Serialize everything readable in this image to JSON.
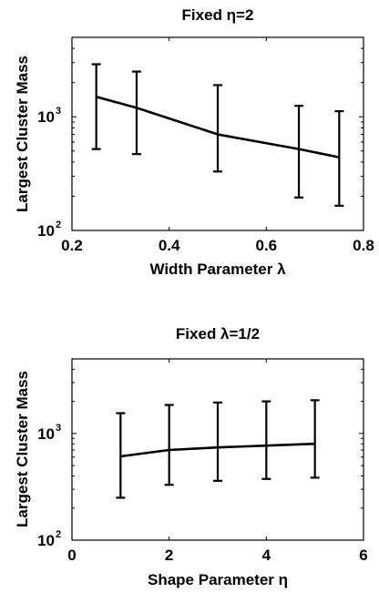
{
  "chart_data": [
    {
      "type": "line",
      "title": "Fixed η=2",
      "xlabel": "Width Parameter λ",
      "ylabel": "Largest Cluster Mass",
      "xlim": [
        0.2,
        0.8
      ],
      "ylim": [
        100,
        5000
      ],
      "yscale": "log",
      "xticks": [
        "0.2",
        "0.4",
        "0.6",
        "0.8"
      ],
      "xtick_values": [
        0.2,
        0.4,
        0.6,
        0.8
      ],
      "yticks": [
        {
          "base": "10",
          "exp": "2",
          "value": 100
        },
        {
          "base": "10",
          "exp": "3",
          "value": 1000
        }
      ],
      "grid": false,
      "series": [
        {
          "x": [
            0.25,
            0.333,
            0.5,
            0.667,
            0.75
          ],
          "y": [
            1500,
            1200,
            700,
            520,
            440
          ],
          "err_low": [
            520,
            470,
            330,
            195,
            165
          ],
          "err_high": [
            2900,
            2500,
            1900,
            1250,
            1120
          ]
        }
      ]
    },
    {
      "type": "line",
      "title": "Fixed λ=1/2",
      "xlabel": "Shape Parameter η",
      "ylabel": "Largest Cluster Mass",
      "xlim": [
        0,
        6
      ],
      "ylim": [
        100,
        5000
      ],
      "yscale": "log",
      "xticks": [
        "0",
        "2",
        "4",
        "6"
      ],
      "xtick_values": [
        0,
        2,
        4,
        6
      ],
      "yticks": [
        {
          "base": "10",
          "exp": "2",
          "value": 100
        },
        {
          "base": "10",
          "exp": "3",
          "value": 1000
        }
      ],
      "grid": false,
      "series": [
        {
          "x": [
            1,
            2,
            3,
            4,
            5
          ],
          "y": [
            610,
            700,
            740,
            770,
            800
          ],
          "err_low": [
            250,
            330,
            360,
            375,
            385
          ],
          "err_high": [
            1550,
            1850,
            1950,
            2000,
            2050
          ]
        }
      ]
    }
  ]
}
